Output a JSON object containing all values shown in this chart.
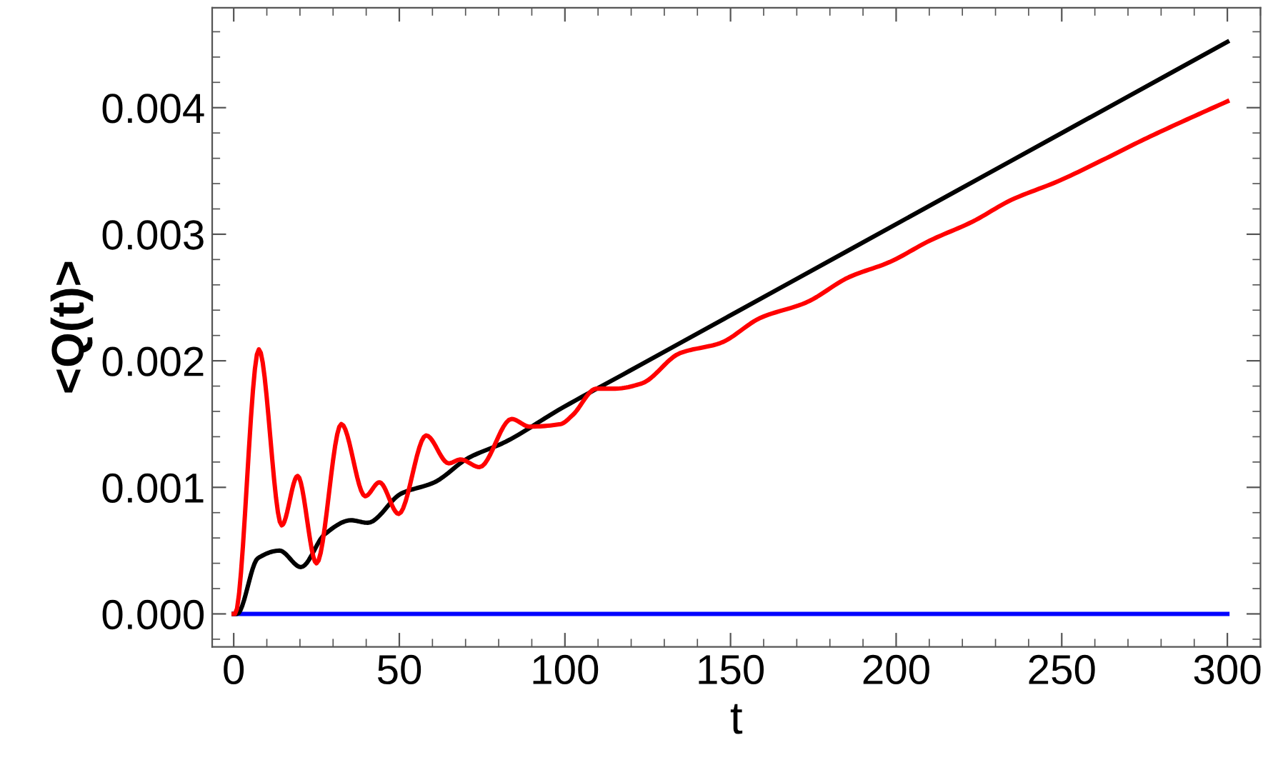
{
  "chart_data": {
    "type": "line",
    "xlabel": "t",
    "ylabel": "<Q(t)>",
    "xlim": [
      -6.5,
      310
    ],
    "ylim": [
      -0.00026,
      0.00479
    ],
    "xticks": [
      0,
      50,
      100,
      150,
      200,
      250,
      300
    ],
    "yticks": [
      {
        "value": 0,
        "label": "0.000"
      },
      {
        "value": 0.001,
        "label": "0.001"
      },
      {
        "value": 0.002,
        "label": "0.002"
      },
      {
        "value": 0.003,
        "label": "0.003"
      },
      {
        "value": 0.004,
        "label": "0.004"
      }
    ],
    "grid": false,
    "marker": "none",
    "line_style": "solid",
    "series": [
      {
        "color": "#0000ff",
        "x": [
          0,
          300
        ],
        "values": [
          0,
          0
        ]
      },
      {
        "color": "#000000",
        "x": [
          0,
          1,
          7.3,
          13.8,
          20.3,
          27.5,
          35.4,
          40.4,
          50.5,
          60.6,
          70.7,
          82.1,
          98,
          119.5,
          300
        ],
        "values": [
          0,
          0,
          0.00044,
          0.0005,
          0.00037,
          0.00063,
          0.00074,
          0.00072,
          0.00095,
          0.00104,
          0.00123,
          0.00136,
          0.00161,
          0.00192,
          0.00452
        ]
      },
      {
        "color": "#ff0000",
        "x": [
          0,
          0.4,
          7.6,
          14.5,
          19.3,
          25.0,
          32.5,
          39.7,
          44.0,
          49.8,
          58.1,
          64.9,
          68.5,
          74.2,
          83.9,
          89.3,
          98.7,
          102.3,
          109.5,
          115.2,
          123.1,
          134.7,
          146.9,
          159.1,
          172.8,
          185.7,
          198,
          210.2,
          223.1,
          234.7,
          249,
          263.4,
          274.9,
          286.4,
          300
        ],
        "values": [
          0,
          0,
          0.00209,
          0.0007,
          0.00109,
          0.0004,
          0.0015,
          0.00093,
          0.00104,
          0.00079,
          0.00141,
          0.00119,
          0.00122,
          0.00116,
          0.00154,
          0.00148,
          0.0015,
          0.00157,
          0.00178,
          0.00178,
          0.00182,
          0.00206,
          0.00214,
          0.00234,
          0.00246,
          0.00266,
          0.00278,
          0.00295,
          0.0031,
          0.00327,
          0.00342,
          0.0036,
          0.00375,
          0.00389,
          0.00405
        ]
      }
    ]
  }
}
